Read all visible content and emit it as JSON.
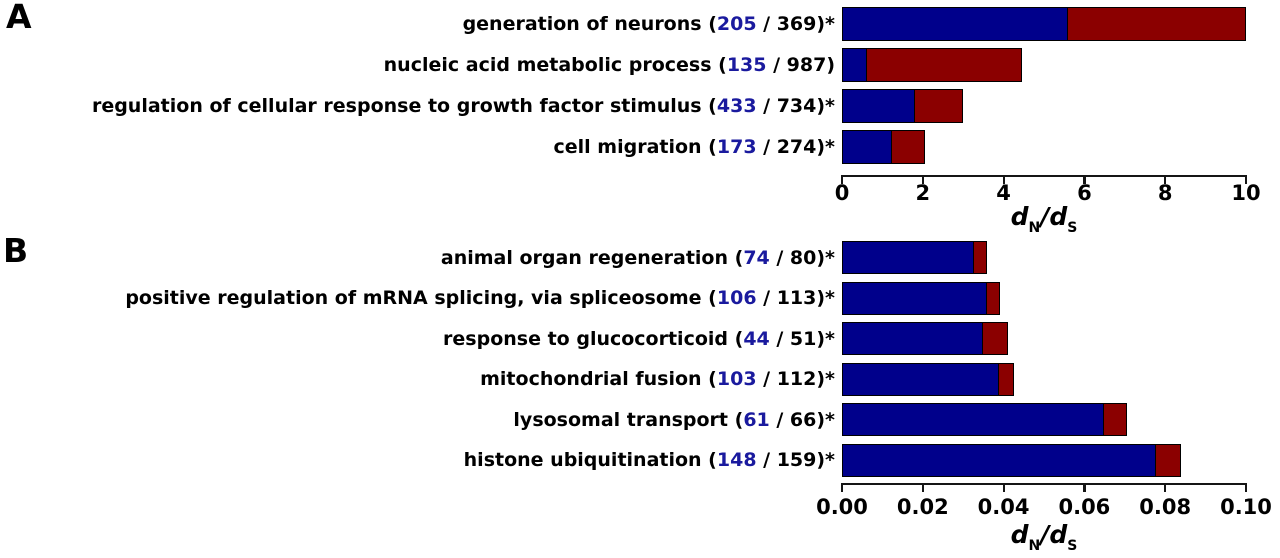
{
  "colors": {
    "bar_blue": "#00008B",
    "bar_red": "#8B0000",
    "bar_border": "#000000",
    "count_text": "#1a1a9e",
    "label_text": "#000000",
    "axis": "#151515"
  },
  "chart_data": [
    {
      "type": "stacked_bar_horizontal",
      "panel": "A",
      "xlim": [
        0,
        10
      ],
      "tick_values": [
        0,
        2,
        4,
        6,
        8,
        10
      ],
      "ticks": [
        "0",
        "2",
        "4",
        "6",
        "8",
        "10"
      ],
      "axis_label": {
        "d1": "d",
        "sub1": "N",
        "slash": "/",
        "d2": "d",
        "sub2": "S"
      },
      "legend": "none",
      "grid": false,
      "bars": [
        {
          "label": "generation of neurons",
          "count": "205",
          "total": "369",
          "significant": true,
          "blue_value": 5.6,
          "total_value": 10.0
        },
        {
          "label": "nucleic acid metabolic process",
          "count": "135",
          "total": "987",
          "significant": false,
          "blue_value": 0.6,
          "total_value": 4.45
        },
        {
          "label": "regulation of cellular response to growth factor stimulus",
          "count": "433",
          "total": "734",
          "significant": true,
          "blue_value": 1.8,
          "total_value": 3.0
        },
        {
          "label": "cell migration",
          "count": "173",
          "total": "274",
          "significant": true,
          "blue_value": 1.25,
          "total_value": 2.05
        }
      ]
    },
    {
      "type": "stacked_bar_horizontal",
      "panel": "B",
      "xlim": [
        0,
        0.1
      ],
      "tick_values": [
        0,
        0.02,
        0.04,
        0.06,
        0.08,
        0.1
      ],
      "ticks": [
        "0.00",
        "0.02",
        "0.04",
        "0.06",
        "0.08",
        "0.10"
      ],
      "axis_label": {
        "d1": "d",
        "sub1": "N",
        "slash": "/",
        "d2": "d",
        "sub2": "S"
      },
      "legend": "none",
      "grid": false,
      "bars": [
        {
          "label": "animal organ regeneration",
          "count": "74",
          "total": "80",
          "significant": true,
          "blue_value": 0.033,
          "total_value": 0.036
        },
        {
          "label": "positive regulation of mRNA splicing, via spliceosome",
          "count": "106",
          "total": "113",
          "significant": true,
          "blue_value": 0.036,
          "total_value": 0.039
        },
        {
          "label": "response to glucocorticoid",
          "count": "44",
          "total": "51",
          "significant": true,
          "blue_value": 0.035,
          "total_value": 0.041
        },
        {
          "label": "mitochondrial fusion",
          "count": "103",
          "total": "112",
          "significant": true,
          "blue_value": 0.039,
          "total_value": 0.0425
        },
        {
          "label": "lysosomal transport",
          "count": "61",
          "total": "66",
          "significant": true,
          "blue_value": 0.065,
          "total_value": 0.0705
        },
        {
          "label": "histone ubiquitination",
          "count": "148",
          "total": "159",
          "significant": true,
          "blue_value": 0.078,
          "total_value": 0.084
        }
      ]
    }
  ]
}
